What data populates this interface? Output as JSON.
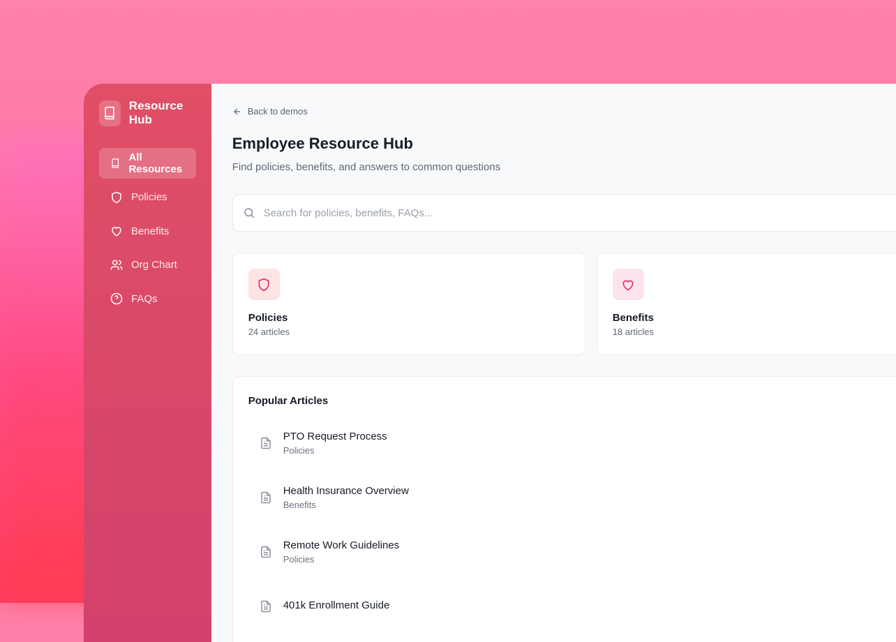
{
  "sidebar": {
    "brand": "Resource Hub",
    "items": [
      {
        "label": "All Resources",
        "icon": "book-icon",
        "active": true
      },
      {
        "label": "Policies",
        "icon": "shield-icon"
      },
      {
        "label": "Benefits",
        "icon": "heart-icon"
      },
      {
        "label": "Org Chart",
        "icon": "users-icon"
      },
      {
        "label": "FAQs",
        "icon": "help-circle-icon"
      }
    ]
  },
  "main": {
    "back": "Back to demos",
    "title": "Employee Resource Hub",
    "subtitle": "Find policies, benefits, and answers to common questions",
    "search_placeholder": "Search for policies, benefits, FAQs...",
    "cards": [
      {
        "title": "Policies",
        "count": "24 articles",
        "color": "#e0334f"
      },
      {
        "title": "Benefits",
        "count": "18 articles",
        "color": "#e0336f"
      }
    ],
    "popular": {
      "title": "Popular Articles",
      "items": [
        {
          "title": "PTO Request Process",
          "category": "Policies"
        },
        {
          "title": "Health Insurance Overview",
          "category": "Benefits"
        },
        {
          "title": "Remote Work Guidelines",
          "category": "Policies"
        },
        {
          "title": "401k Enrollment Guide",
          "category": ""
        }
      ]
    }
  }
}
